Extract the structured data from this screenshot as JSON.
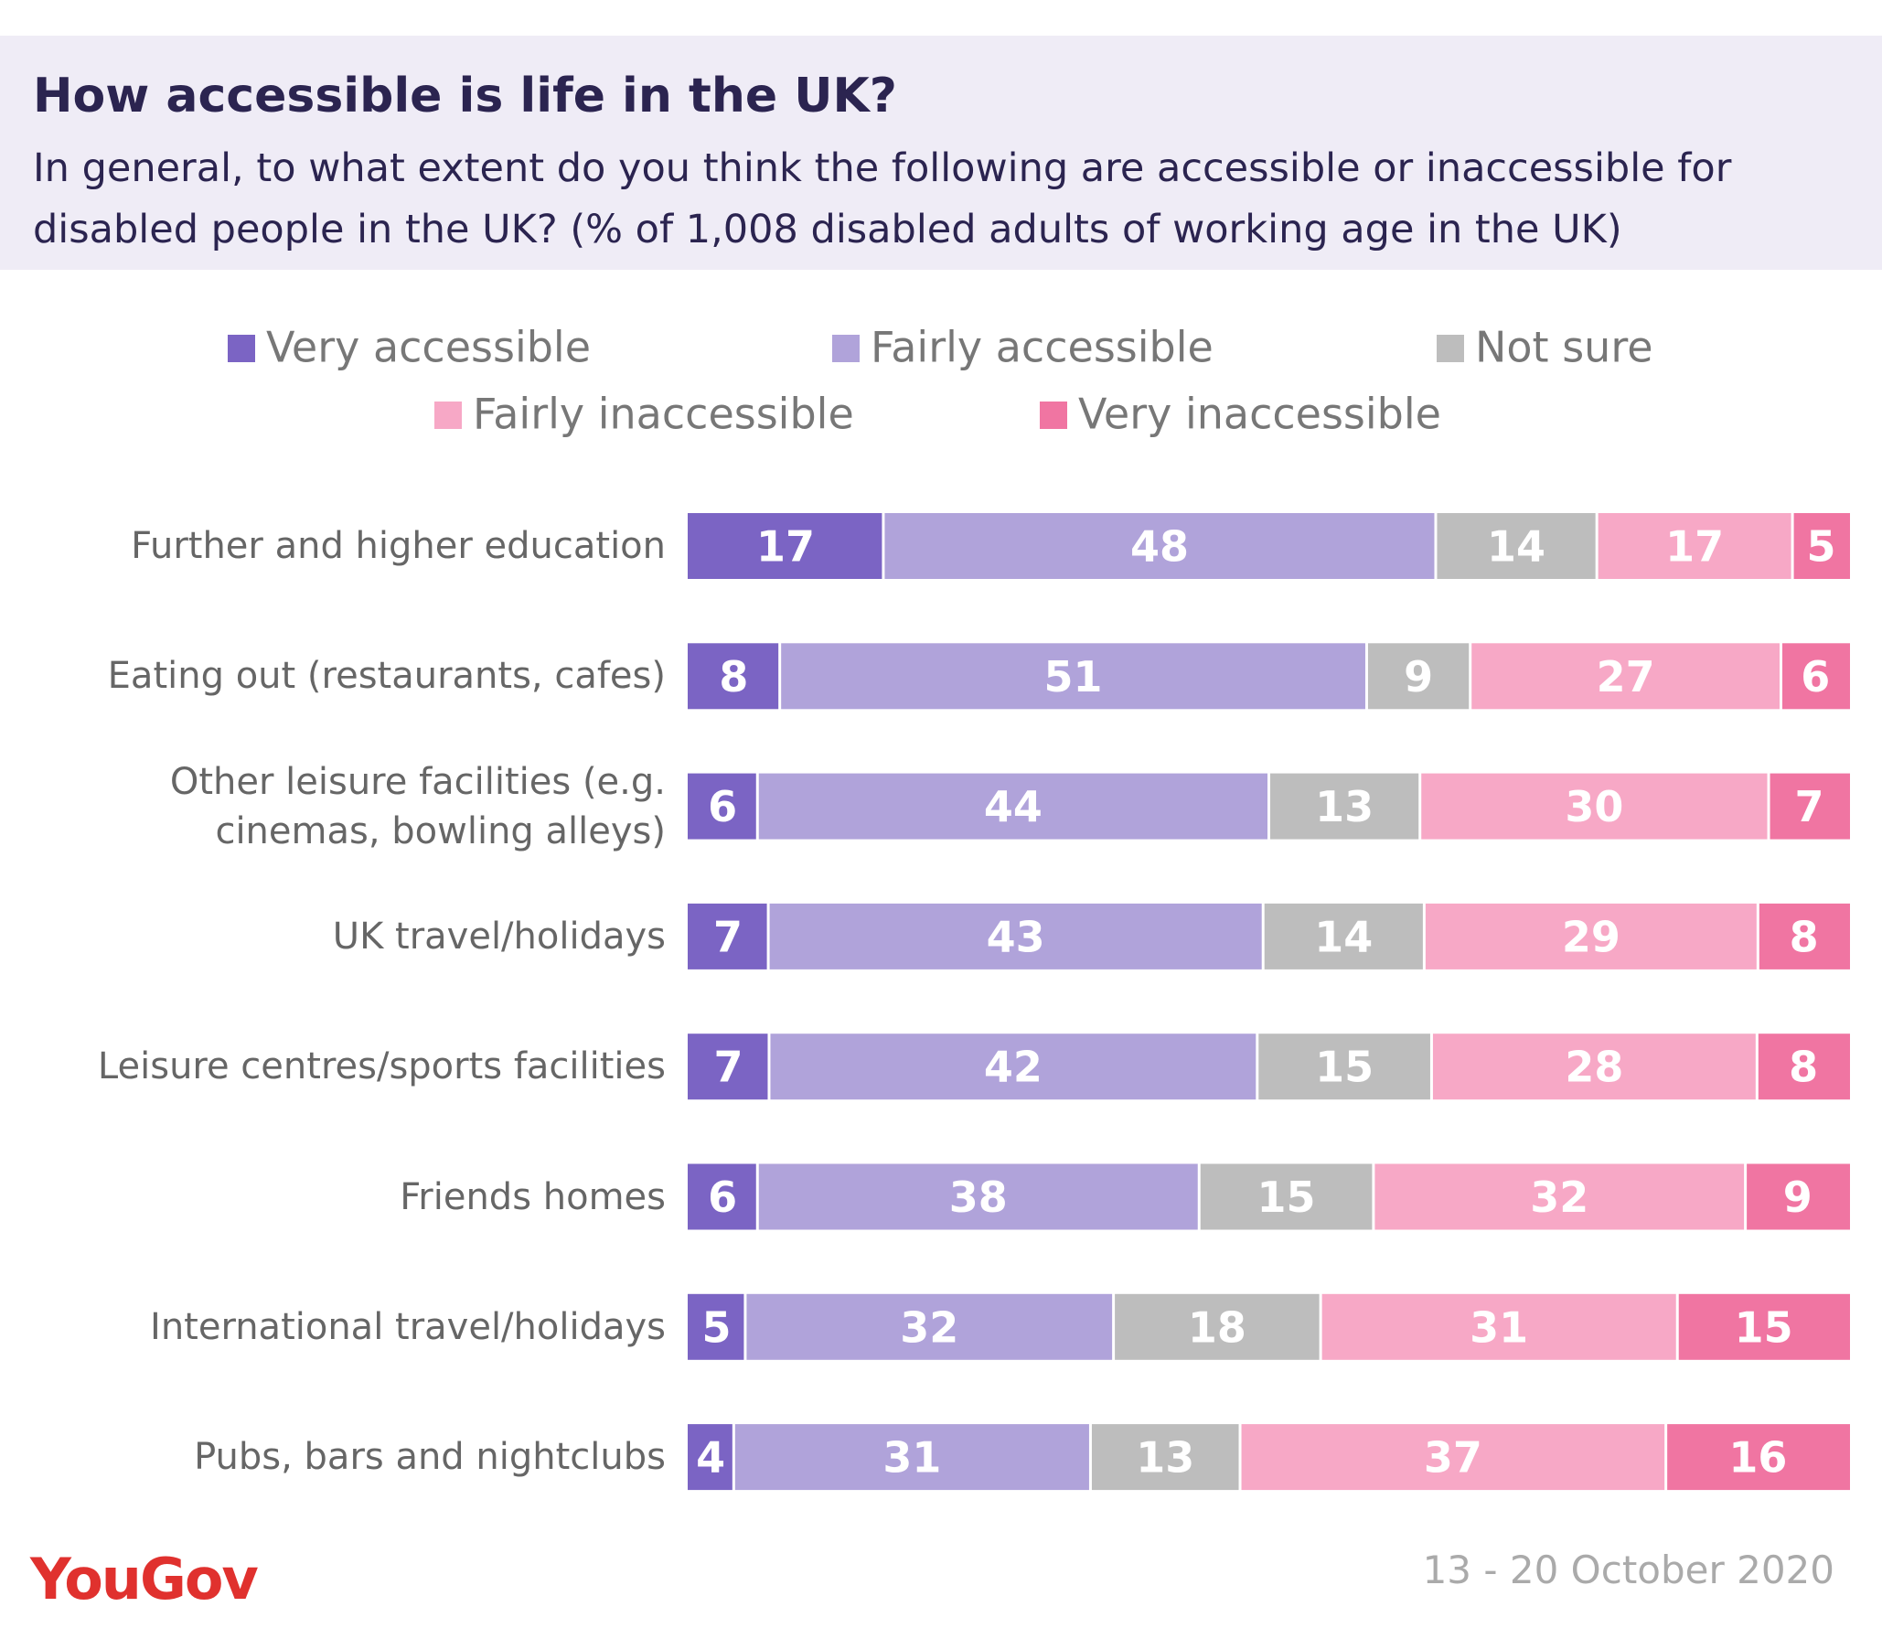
{
  "chart_data": {
    "type": "stacked_bar_horizontal",
    "title": "How accessible is life in the UK?",
    "subtitle": "In general, to what extent do you think the following are accessible or inaccessible for disabled people in the UK? (% of 1,008 disabled adults of working age in the UK)",
    "categories": [
      "Further and higher education",
      "Eating out (restaurants, cafes)",
      "Other leisure facilities (e.g. cinemas, bowling alleys)",
      "UK travel/holidays",
      "Leisure centres/sports facilities",
      "Friends homes",
      "International travel/holidays",
      "Pubs, bars and nightclubs"
    ],
    "series": [
      {
        "name": "Very accessible",
        "color": "#7b64c4",
        "values": [
          17,
          8,
          6,
          7,
          7,
          6,
          5,
          4
        ]
      },
      {
        "name": "Fairly accessible",
        "color": "#b0a3da",
        "values": [
          48,
          51,
          44,
          43,
          42,
          38,
          32,
          31
        ]
      },
      {
        "name": "Not sure",
        "color": "#bdbdbd",
        "values": [
          14,
          9,
          13,
          14,
          15,
          15,
          18,
          13
        ]
      },
      {
        "name": "Fairly inaccessible",
        "color": "#f7a8c6",
        "values": [
          17,
          27,
          30,
          29,
          28,
          32,
          31,
          37
        ]
      },
      {
        "name": "Very inaccessible",
        "color": "#f075a2",
        "values": [
          5,
          6,
          7,
          8,
          8,
          9,
          15,
          16
        ]
      }
    ],
    "source": "YouGov",
    "date": "13 - 20 October 2020"
  }
}
